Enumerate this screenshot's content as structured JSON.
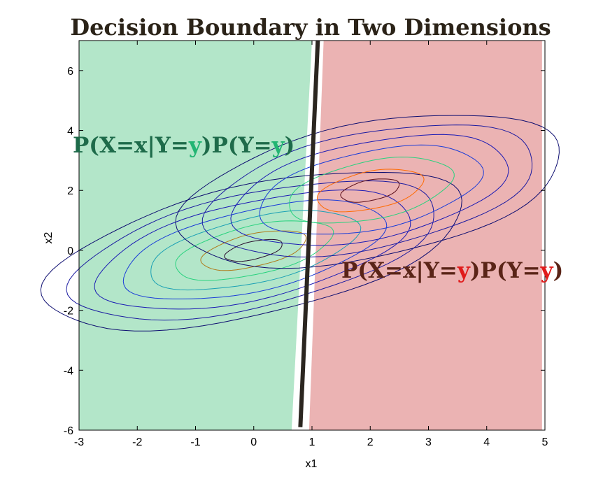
{
  "chart_data": {
    "type": "contour",
    "title": "Decision Boundary in Two Dimensions",
    "xlabel": "x1",
    "ylabel": "x2",
    "xlim": [
      -3,
      5
    ],
    "ylim": [
      -6,
      7
    ],
    "x_ticks": [
      -3,
      -2,
      -1,
      0,
      1,
      2,
      3,
      4,
      5
    ],
    "y_ticks": [
      -6,
      -4,
      -2,
      0,
      2,
      4,
      6
    ],
    "grid": false,
    "regions": [
      {
        "color": "#b3e6c9",
        "polygon": [
          [
            -3,
            7
          ],
          [
            1.0,
            7
          ],
          [
            0.65,
            -6
          ],
          [
            -3,
            -6
          ]
        ]
      },
      {
        "color": "#ebb3b3",
        "polygon": [
          [
            1.2,
            7
          ],
          [
            4.95,
            7
          ],
          [
            4.95,
            -6
          ],
          [
            0.95,
            -6
          ]
        ]
      }
    ],
    "boundary": {
      "color": "#2b2620",
      "points": [
        [
          1.1,
          7
        ],
        [
          0.8,
          -5.9
        ]
      ]
    },
    "contour_sets": [
      {
        "center": [
          0,
          0
        ],
        "angle_deg": 30,
        "axis_ratio": 0.5,
        "radii": [
          0.55,
          1.0,
          1.5,
          2.0,
          2.5,
          3.0,
          3.5,
          4.0
        ],
        "colors": [
          "#2a0d2e",
          "#b07a1a",
          "#28d27e",
          "#1aa0b4",
          "#1a3cd8",
          "#1a1ab4",
          "#1a1aa0",
          "#0d0d70"
        ]
      },
      {
        "center": [
          2,
          2
        ],
        "angle_deg": 30,
        "axis_ratio": 0.58,
        "radii": [
          0.55,
          1.0,
          1.55,
          2.1,
          2.6,
          3.1,
          3.6
        ],
        "colors": [
          "#5a0d1a",
          "#ff6a00",
          "#28d27e",
          "#1a3cd8",
          "#1a1ab4",
          "#1a1aa0",
          "#0d0d70"
        ]
      }
    ],
    "annotations": [
      {
        "location": "left",
        "color": "#1e6b4a",
        "accent": "#22b573",
        "parts": [
          "P(X=x|Y=",
          "y",
          ")P(Y=",
          "y",
          ")"
        ]
      },
      {
        "location": "right",
        "color": "#5a2417",
        "accent": "#e01b1b",
        "parts": [
          "P(X=x|Y=",
          "y",
          ")P(Y=",
          "y",
          ")"
        ]
      }
    ]
  }
}
